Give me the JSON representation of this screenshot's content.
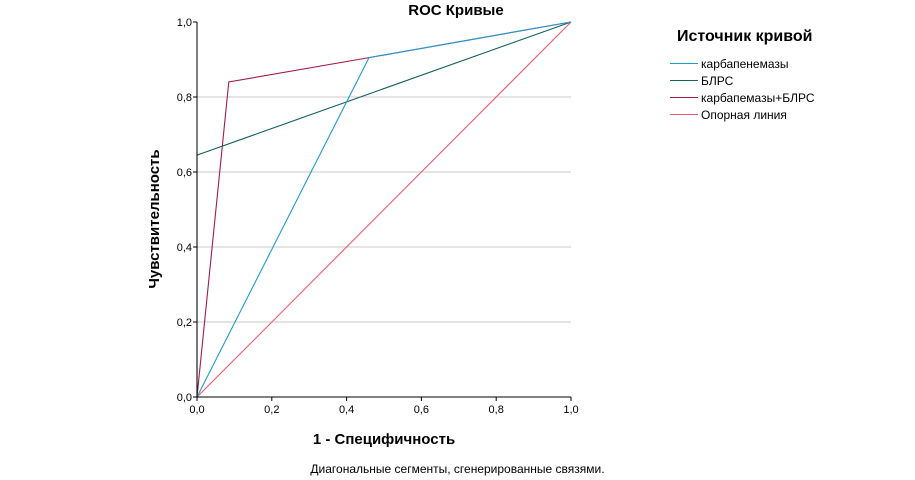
{
  "chart_data": {
    "type": "line",
    "title": "ROC Кривые",
    "xlabel": "1 - Специфичность",
    "ylabel": "Чувствительность",
    "xlim": [
      0,
      1
    ],
    "ylim": [
      0,
      1
    ],
    "xticks": [
      "0,0",
      "0,2",
      "0,4",
      "0,6",
      "0,8",
      "1,0"
    ],
    "yticks": [
      "0,0",
      "0,2",
      "0,4",
      "0,6",
      "0,8",
      "1,0"
    ],
    "grid": "horizontal",
    "legend_position": "top-right",
    "legend_title": "Источник кривой",
    "series": [
      {
        "name": "карбапенемазы",
        "color": "#1f9bcf",
        "x": [
          0,
          0.46,
          1
        ],
        "y": [
          0,
          0.905,
          1
        ]
      },
      {
        "name": "БЛРС",
        "color": "#14625c",
        "x": [
          0,
          0,
          1
        ],
        "y": [
          0,
          0.645,
          1
        ]
      },
      {
        "name": "карбапемазы+БЛРС",
        "color": "#a01c4a",
        "x": [
          0,
          0.085,
          0.46,
          1
        ],
        "y": [
          0,
          0.84,
          0.905,
          1
        ]
      },
      {
        "name": "Опорная линия",
        "color": "#f05a6e",
        "x": [
          0,
          1
        ],
        "y": [
          0,
          1
        ]
      }
    ],
    "footnote": "Диагональные сегменты, сгенерированные связями."
  }
}
